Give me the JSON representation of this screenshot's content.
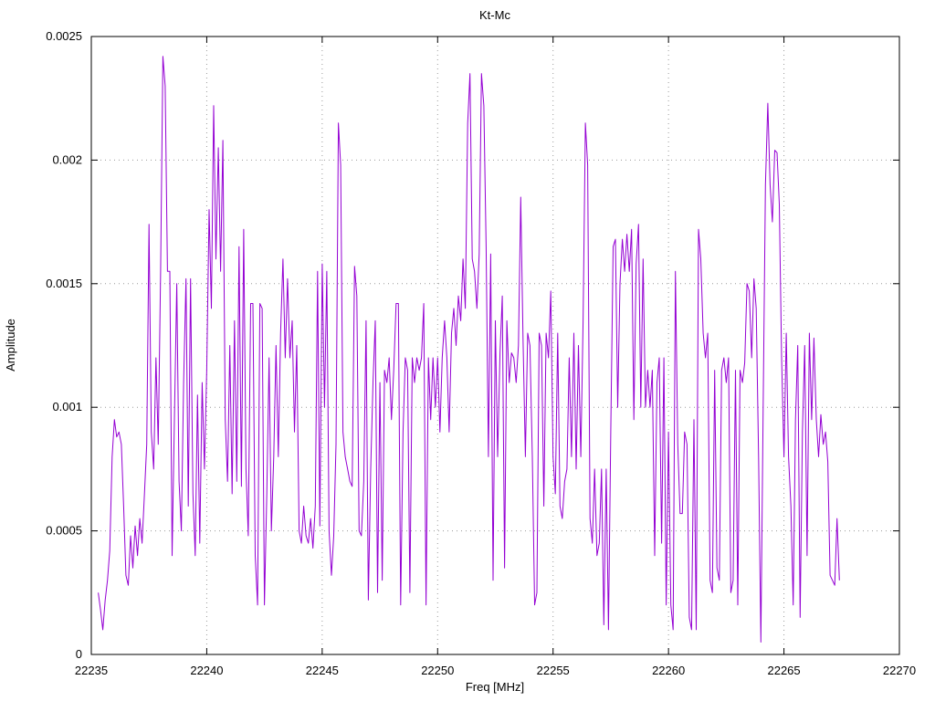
{
  "chart_data": {
    "type": "line",
    "title": "Kt-Mc",
    "xlabel": "Freq [MHz]",
    "ylabel": "Amplitude",
    "xlim": [
      22235,
      22270
    ],
    "ylim": [
      0,
      0.0025
    ],
    "grid": true,
    "legend": "none",
    "line_color": "#9400d3",
    "xticks": [
      [
        22235,
        "22235"
      ],
      [
        22240,
        "22240"
      ],
      [
        22245,
        "22245"
      ],
      [
        22250,
        "22250"
      ],
      [
        22255,
        "22255"
      ],
      [
        22260,
        "22260"
      ],
      [
        22265,
        "22265"
      ],
      [
        22270,
        "22270"
      ]
    ],
    "yticks": [
      [
        0,
        "0"
      ],
      [
        0.0005,
        "0.0005"
      ],
      [
        0.001,
        "0.001"
      ],
      [
        0.0015,
        "0.0015"
      ],
      [
        0.002,
        "0.002"
      ],
      [
        0.0025,
        "0.0025"
      ]
    ],
    "series": [
      {
        "name": "Kt-Mc",
        "x_start": 22235.3,
        "x_step": 0.1,
        "y_unit": 0.0001,
        "values": [
          2.5,
          1.8,
          1.0,
          2.2,
          3.0,
          4.2,
          8.0,
          9.5,
          8.8,
          9.0,
          8.5,
          6.0,
          3.2,
          2.8,
          4.8,
          3.5,
          5.2,
          4.0,
          5.5,
          4.5,
          6.5,
          8.5,
          17.4,
          9.0,
          7.5,
          12.0,
          8.5,
          15.5,
          24.2,
          23.0,
          15.5,
          15.5,
          4.0,
          9.5,
          15.0,
          7.0,
          5.0,
          11.0,
          15.2,
          6.0,
          15.2,
          6.5,
          4.0,
          10.5,
          4.5,
          11.0,
          7.5,
          11.5,
          18.0,
          14.0,
          22.2,
          16.0,
          20.5,
          15.5,
          20.8,
          9.5,
          7.0,
          12.5,
          6.5,
          13.5,
          7.0,
          16.5,
          6.8,
          17.2,
          7.5,
          4.8,
          14.2,
          14.2,
          4.0,
          2.0,
          14.2,
          14.0,
          2.0,
          6.5,
          12.0,
          5.0,
          8.0,
          12.5,
          8.0,
          13.0,
          16.0,
          12.0,
          15.2,
          12.0,
          13.5,
          9.0,
          12.5,
          5.0,
          4.5,
          6.0,
          4.8,
          4.5,
          5.5,
          4.3,
          6.0,
          15.5,
          5.2,
          15.8,
          10.0,
          15.5,
          5.0,
          3.2,
          4.8,
          8.5,
          21.5,
          19.8,
          9.0,
          8.0,
          7.5,
          7.0,
          6.8,
          15.7,
          14.5,
          5.0,
          4.8,
          7.0,
          13.5,
          2.2,
          7.5,
          11.0,
          13.5,
          2.5,
          11.0,
          3.0,
          11.5,
          11.0,
          12.0,
          9.5,
          11.5,
          14.2,
          14.2,
          2.0,
          9.0,
          12.0,
          11.5,
          2.5,
          12.0,
          11.0,
          12.0,
          11.5,
          12.0,
          14.2,
          2.0,
          12.0,
          9.5,
          12.0,
          10.0,
          12.0,
          9.0,
          12.0,
          13.5,
          12.0,
          9.0,
          13.0,
          14.0,
          12.5,
          14.5,
          13.5,
          16.0,
          14.0,
          21.5,
          23.5,
          16.0,
          15.5,
          14.0,
          16.2,
          23.5,
          22.2,
          16.5,
          8.0,
          16.2,
          3.0,
          13.5,
          8.0,
          12.2,
          14.5,
          3.5,
          13.5,
          11.0,
          12.2,
          12.0,
          11.0,
          12.5,
          18.5,
          12.8,
          8.0,
          13.0,
          12.5,
          8.0,
          2.0,
          2.5,
          13.0,
          12.5,
          6.0,
          13.0,
          12.0,
          14.7,
          8.0,
          6.5,
          13.0,
          6.0,
          5.5,
          7.0,
          7.5,
          12.0,
          8.0,
          13.0,
          7.5,
          12.5,
          8.0,
          13.5,
          21.5,
          19.8,
          5.5,
          4.5,
          7.5,
          4.0,
          4.5,
          7.5,
          1.2,
          7.5,
          1.0,
          9.0,
          16.5,
          16.8,
          10.0,
          15.0,
          16.8,
          15.5,
          17.0,
          15.5,
          17.2,
          9.5,
          15.8,
          17.4,
          10.0,
          16.0,
          10.0,
          11.5,
          10.0,
          11.5,
          4.0,
          11.0,
          12.0,
          4.5,
          12.0,
          2.0,
          9.0,
          2.0,
          1.0,
          15.5,
          8.5,
          5.7,
          5.7,
          9.0,
          8.5,
          1.5,
          1.0,
          9.5,
          1.0,
          17.2,
          16.0,
          13.0,
          12.0,
          13.0,
          3.0,
          2.5,
          11.5,
          3.5,
          3.0,
          11.5,
          12.0,
          11.0,
          12.0,
          2.5,
          3.0,
          11.5,
          2.0,
          11.5,
          11.0,
          11.8,
          15.0,
          14.7,
          12.0,
          15.2,
          14.0,
          8.0,
          0.5,
          10.0,
          19.0,
          22.3,
          19.0,
          17.5,
          20.4,
          20.3,
          18.2,
          12.0,
          8.0,
          13.0,
          8.0,
          6.0,
          2.0,
          9.5,
          12.5,
          1.5,
          9.0,
          12.5,
          4.0,
          13.0,
          9.5,
          12.8,
          9.5,
          8.0,
          9.7,
          8.5,
          9.0,
          7.8,
          3.2,
          3.0,
          2.8,
          5.5,
          3.0
        ]
      }
    ]
  }
}
